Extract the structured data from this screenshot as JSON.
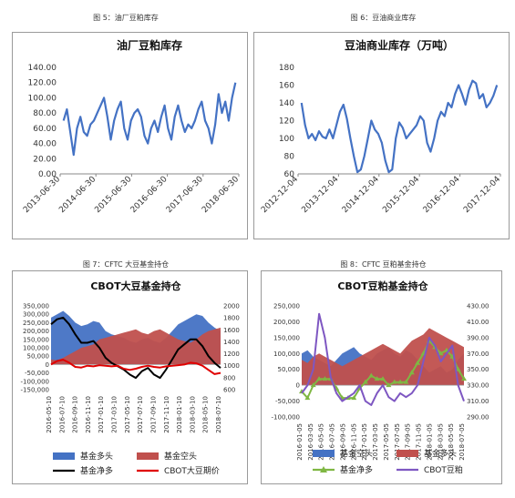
{
  "captions": {
    "fig5": "图 5：油厂豆粕库存",
    "fig6": "图 6：豆油商业库存",
    "fig7": "图 7：CFTC 大豆基金持仓",
    "fig8": "图 8：CFTC 豆粕基金持仓"
  },
  "chart_data": [
    {
      "id": "fig5",
      "type": "line",
      "title": "油厂豆粕库存",
      "x_ticks": [
        "2013-06-30",
        "2014-06-30",
        "2015-06-30",
        "2016-06-30",
        "2017-06-30",
        "2018-06-30"
      ],
      "y_ticks": [
        "0.00",
        "20.00",
        "40.00",
        "60.00",
        "80.00",
        "100.00",
        "120.00",
        "140.00"
      ],
      "ylim": [
        0,
        140
      ],
      "grid": false,
      "series": [
        {
          "color": "#4472c4",
          "x": [
            2013.4,
            2013.5,
            2013.6,
            2013.7,
            2013.8,
            2013.9,
            2014.0,
            2014.1,
            2014.2,
            2014.3,
            2014.4,
            2014.5,
            2014.6,
            2014.7,
            2014.8,
            2014.9,
            2015.0,
            2015.1,
            2015.2,
            2015.3,
            2015.4,
            2015.5,
            2015.6,
            2015.7,
            2015.8,
            2015.9,
            2016.0,
            2016.1,
            2016.2,
            2016.3,
            2016.4,
            2016.5,
            2016.6,
            2016.7,
            2016.8,
            2016.9,
            2017.0,
            2017.1,
            2017.2,
            2017.3,
            2017.4,
            2017.5,
            2017.6,
            2017.7,
            2017.8,
            2017.9,
            2018.0,
            2018.1,
            2018.2,
            2018.3,
            2018.4,
            2018.5
          ],
          "values": [
            70,
            85,
            55,
            25,
            60,
            75,
            55,
            50,
            65,
            70,
            80,
            90,
            100,
            75,
            45,
            70,
            85,
            95,
            60,
            45,
            70,
            80,
            85,
            75,
            50,
            40,
            60,
            70,
            55,
            75,
            90,
            60,
            45,
            75,
            90,
            70,
            55,
            65,
            60,
            70,
            85,
            95,
            70,
            60,
            40,
            65,
            105,
            80,
            95,
            70,
            100,
            120
          ]
        }
      ]
    },
    {
      "id": "fig6",
      "type": "line",
      "title": "豆油商业库存（万吨）",
      "x_ticks": [
        "2012-12-04",
        "2013-12-04",
        "2014-12-04",
        "2015-12-04",
        "2016-12-04",
        "2017-12-04"
      ],
      "y_ticks": [
        "60",
        "80",
        "100",
        "120",
        "140",
        "160",
        "180"
      ],
      "ylim": [
        60,
        180
      ],
      "grid": false,
      "series": [
        {
          "color": "#4472c4",
          "x": [
            2012.9,
            2013.0,
            2013.1,
            2013.2,
            2013.3,
            2013.4,
            2013.5,
            2013.6,
            2013.7,
            2013.8,
            2013.9,
            2014.0,
            2014.1,
            2014.2,
            2014.3,
            2014.4,
            2014.5,
            2014.6,
            2014.7,
            2014.8,
            2014.9,
            2015.0,
            2015.1,
            2015.2,
            2015.3,
            2015.4,
            2015.5,
            2015.6,
            2015.7,
            2015.8,
            2015.9,
            2016.0,
            2016.1,
            2016.2,
            2016.3,
            2016.4,
            2016.5,
            2016.6,
            2016.7,
            2016.8,
            2016.9,
            2017.0,
            2017.1,
            2017.2,
            2017.3,
            2017.4,
            2017.5,
            2017.6,
            2017.7,
            2017.8,
            2017.9,
            2018.0,
            2018.1,
            2018.2,
            2018.3,
            2018.4,
            2018.5
          ],
          "values": [
            140,
            115,
            100,
            105,
            98,
            108,
            102,
            100,
            110,
            100,
            115,
            130,
            138,
            122,
            100,
            80,
            62,
            65,
            80,
            100,
            120,
            110,
            105,
            95,
            75,
            62,
            65,
            100,
            118,
            112,
            100,
            105,
            110,
            115,
            125,
            120,
            95,
            85,
            100,
            120,
            130,
            125,
            140,
            135,
            150,
            160,
            150,
            138,
            155,
            165,
            162,
            145,
            150,
            135,
            140,
            148,
            160
          ]
        }
      ]
    },
    {
      "id": "fig7",
      "type": "area",
      "title": "CBOT大豆基金持仓",
      "x_ticks": [
        "2016-05-10",
        "2016-07-10",
        "2016-09-10",
        "2016-11-10",
        "2017-01-10",
        "2017-03-10",
        "2017-05-10",
        "2017-07-10",
        "2017-09-10",
        "2017-11-10",
        "2018-01-10",
        "2018-03-10",
        "2018-05-10",
        "2018-07-10"
      ],
      "y_ticks_left": [
        "-150,000",
        "-100,000",
        "-50,000",
        "0",
        "50,000",
        "100,000",
        "150,000",
        "200,000",
        "250,000",
        "300,000",
        "350,000"
      ],
      "y_ticks_right": [
        "600",
        "800",
        "1000",
        "1200",
        "1400",
        "1600",
        "1800",
        "2000"
      ],
      "ylim_left": [
        -150000,
        350000
      ],
      "ylim_right": [
        600,
        2000
      ],
      "legend": [
        "基金多头",
        "基金空头",
        "基金净多",
        "CBOT大豆期价"
      ],
      "legend_position": "bottom",
      "series": [
        {
          "name": "基金多头",
          "color": "#4472c4",
          "kind": "area",
          "axis": "left",
          "values": [
            280000,
            300000,
            320000,
            290000,
            250000,
            230000,
            240000,
            260000,
            250000,
            200000,
            180000,
            170000,
            160000,
            140000,
            130000,
            150000,
            160000,
            140000,
            130000,
            160000,
            200000,
            240000,
            260000,
            280000,
            300000,
            290000,
            250000,
            220000,
            200000
          ]
        },
        {
          "name": "基金空头",
          "color": "#c0504d",
          "kind": "area",
          "axis": "left",
          "values": [
            30000,
            25000,
            40000,
            60000,
            80000,
            100000,
            110000,
            120000,
            150000,
            160000,
            170000,
            180000,
            190000,
            200000,
            210000,
            190000,
            180000,
            200000,
            210000,
            190000,
            170000,
            150000,
            140000,
            130000,
            150000,
            180000,
            200000,
            210000,
            220000
          ]
        },
        {
          "name": "基金净多",
          "color": "#000000",
          "kind": "line",
          "axis": "left",
          "values": [
            240000,
            270000,
            280000,
            240000,
            180000,
            130000,
            130000,
            140000,
            100000,
            40000,
            10000,
            -10000,
            -30000,
            -60000,
            -80000,
            -40000,
            -20000,
            -60000,
            -80000,
            -30000,
            30000,
            90000,
            120000,
            150000,
            150000,
            110000,
            50000,
            10000,
            -20000
          ]
        },
        {
          "name": "CBOT大豆期价",
          "color": "#e00000",
          "kind": "line",
          "axis": "right",
          "values": [
            1020,
            1080,
            1100,
            1050,
            980,
            970,
            1000,
            990,
            1010,
            1000,
            990,
            1000,
            950,
            930,
            950,
            980,
            1000,
            980,
            970,
            990,
            1000,
            1010,
            1020,
            1050,
            1040,
            1000,
            930,
            860,
            880
          ]
        }
      ]
    },
    {
      "id": "fig8",
      "type": "area",
      "title": "CBOT豆粕基金持仓",
      "x_ticks": [
        "2016-01-05",
        "2016-03-05",
        "2016-05-05",
        "2016-07-05",
        "2016-09-05",
        "2016-11-05",
        "2017-01-05",
        "2017-03-05",
        "2017-05-05",
        "2017-07-05",
        "2017-09-05",
        "2017-11-05",
        "2018-01-05",
        "2018-03-05",
        "2018-05-05",
        "2018-07-05"
      ],
      "y_ticks_left": [
        "-100,000",
        "-50,000",
        "0",
        "50,000",
        "100,000",
        "150,000",
        "200,000",
        "250,000"
      ],
      "y_ticks_right": [
        "290.00",
        "310.00",
        "330.00",
        "350.00",
        "370.00",
        "390.00",
        "410.00",
        "430.00"
      ],
      "ylim_left": [
        -100000,
        250000
      ],
      "ylim_right": [
        290,
        430
      ],
      "legend": [
        "基金空头",
        "基金多头",
        "基金净多",
        "CBOT豆粕"
      ],
      "legend_position": "bottom",
      "series": [
        {
          "name": "基金空头",
          "color": "#4472c4",
          "kind": "area",
          "axis": "left",
          "values": [
            100000,
            110000,
            90000,
            80000,
            70000,
            60000,
            80000,
            100000,
            110000,
            120000,
            100000,
            90000,
            80000,
            100000,
            110000,
            120000,
            100000,
            90000,
            110000,
            100000,
            80000,
            60000,
            40000,
            50000,
            60000,
            40000,
            50000,
            80000,
            100000
          ]
        },
        {
          "name": "基金多头",
          "color": "#c0504d",
          "kind": "area",
          "axis": "left",
          "values": [
            80000,
            70000,
            90000,
            100000,
            90000,
            80000,
            70000,
            60000,
            70000,
            80000,
            90000,
            100000,
            110000,
            120000,
            130000,
            120000,
            110000,
            100000,
            120000,
            140000,
            150000,
            160000,
            180000,
            170000,
            160000,
            150000,
            140000,
            130000,
            120000
          ]
        },
        {
          "name": "基金净多",
          "color": "#7fb743",
          "kind": "line",
          "axis": "left",
          "values": [
            -20000,
            -40000,
            0,
            20000,
            20000,
            20000,
            -10000,
            -40000,
            -40000,
            -40000,
            -10000,
            10000,
            30000,
            20000,
            20000,
            0,
            10000,
            10000,
            10000,
            40000,
            70000,
            100000,
            140000,
            120000,
            100000,
            110000,
            90000,
            50000,
            20000
          ]
        },
        {
          "name": "CBOT豆粕",
          "color": "#7e57c2",
          "kind": "line",
          "axis": "right",
          "values": [
            320,
            330,
            350,
            420,
            390,
            340,
            320,
            310,
            315,
            320,
            330,
            310,
            305,
            320,
            330,
            315,
            310,
            320,
            315,
            320,
            330,
            360,
            390,
            380,
            360,
            370,
            380,
            330,
            310
          ]
        }
      ]
    }
  ]
}
